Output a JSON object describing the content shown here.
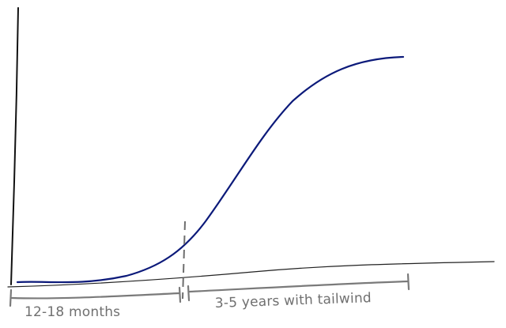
{
  "diagram": {
    "phase_one_label": "12-18 months",
    "phase_two_label": "3-5 years with tailwind",
    "colors": {
      "curve": "#0c1a7a",
      "axis": "#111111",
      "annotation": "#707070"
    }
  }
}
